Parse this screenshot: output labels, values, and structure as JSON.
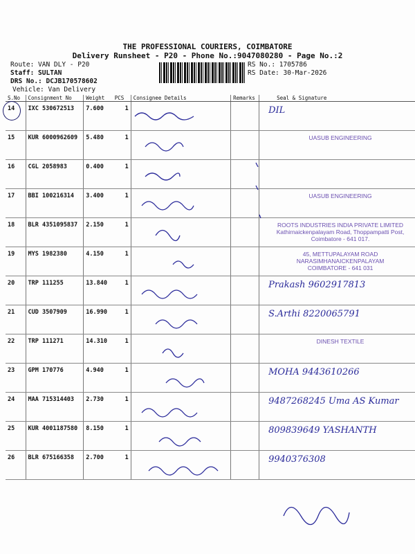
{
  "header": {
    "company": "THE PROFESSIONAL COURIERS, COIMBATORE",
    "subtitle": "Delivery Runsheet - P20 - Phone No.:9047080280 - Page No.:2",
    "route": "Route: VAN DLY - P20",
    "staff": "Staff: SULTAN",
    "drs_no": "DRS No.: DCJB170578602",
    "vehicle": "Vehicle: Van Delivery",
    "rs_no": "RS No.: 1705786",
    "rs_date": "RS Date: 30-Mar-2026"
  },
  "table": {
    "columns": [
      "S.No",
      "Consignment No",
      "Weight",
      "PCS",
      "Consignee Details",
      "Remarks",
      "Seal & Signature"
    ],
    "rows": [
      {
        "sno": "14",
        "cn": "IXC 530672513",
        "weight": "7.600",
        "pcs": "1",
        "seal": "DIL"
      },
      {
        "sno": "15",
        "cn": "KUR 6000962609",
        "weight": "5.480",
        "pcs": "1",
        "seal": "UASUB ENGINEERING"
      },
      {
        "sno": "16",
        "cn": "CGL 2058983",
        "weight": "0.400",
        "pcs": "1",
        "seal": ""
      },
      {
        "sno": "17",
        "cn": "BBI 100216314",
        "weight": "3.400",
        "pcs": "1",
        "seal": "UASUB ENGINEERING"
      },
      {
        "sno": "18",
        "cn": "BLR 4351095837",
        "weight": "2.150",
        "pcs": "1",
        "seal": "ROOTS INDUSTRIES INDIA PRIVATE LIMITED"
      },
      {
        "sno": "19",
        "cn": "MYS 1982380",
        "weight": "4.150",
        "pcs": "1",
        "seal": "45, METTUPALAYAM ROAD"
      },
      {
        "sno": "20",
        "cn": "TRP 111255",
        "weight": "13.840",
        "pcs": "1",
        "seal": "Prakash 9602917813"
      },
      {
        "sno": "21",
        "cn": "CUD 3507909",
        "weight": "16.990",
        "pcs": "1",
        "seal": "S.Arthi 8220065791"
      },
      {
        "sno": "22",
        "cn": "TRP 111271",
        "weight": "14.310",
        "pcs": "1",
        "seal": "DINESH TEXTILE"
      },
      {
        "sno": "23",
        "cn": "GPM 170776",
        "weight": "4.940",
        "pcs": "1",
        "seal": "MOHA 9443610266"
      },
      {
        "sno": "24",
        "cn": "MAA 715314403",
        "weight": "2.730",
        "pcs": "1",
        "seal": "9487268245 Uma AS Kumar"
      },
      {
        "sno": "25",
        "cn": "KUR 4001187580",
        "weight": "8.150",
        "pcs": "1",
        "seal": "809839649 YASHANTH"
      },
      {
        "sno": "26",
        "cn": "BLR 675166358",
        "weight": "2.700",
        "pcs": "1",
        "seal": "9940376308"
      }
    ]
  },
  "stamps": {
    "roots_2": "Kathirnaickenpalayam Road, Thoppampatti Post,",
    "roots_3": "Coimbatore - 641 017.",
    "shiv_2": "NARASIMHANAICKENPALAYAM",
    "shiv_3": "COIMBATORE - 641 031"
  },
  "colors": {
    "ink": "#2a2a9a",
    "stamp": "#6a4fb0"
  }
}
